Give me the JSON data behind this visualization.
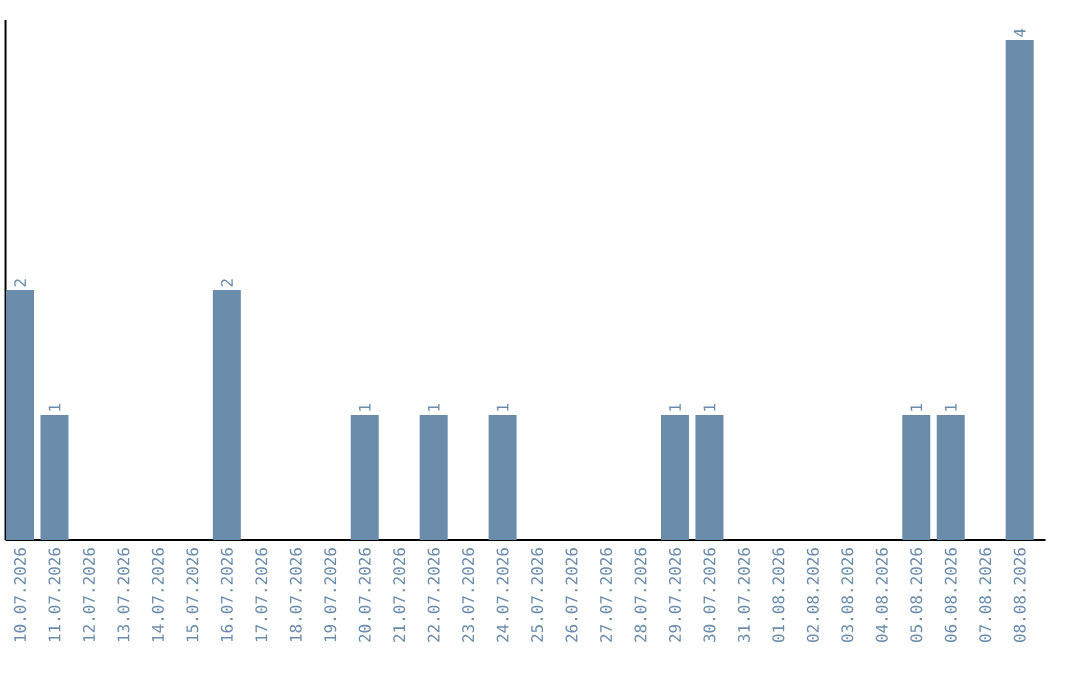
{
  "chart_data": {
    "type": "bar",
    "relative": false,
    "categories": [
      "10.07.2026",
      "11.07.2026",
      "12.07.2026",
      "13.07.2026",
      "14.07.2026",
      "15.07.2026",
      "16.07.2026",
      "17.07.2026",
      "18.07.2026",
      "19.07.2026",
      "20.07.2026",
      "21.07.2026",
      "22.07.2026",
      "23.07.2026",
      "24.07.2026",
      "25.07.2026",
      "26.07.2026",
      "27.07.2026",
      "28.07.2026",
      "29.07.2026",
      "30.07.2026",
      "31.07.2026",
      "01.08.2026",
      "02.08.2026",
      "03.08.2026",
      "04.08.2026",
      "05.08.2026",
      "06.08.2026",
      "07.08.2026",
      "08.08.2026"
    ],
    "values": [
      2,
      1,
      0,
      0,
      0,
      0,
      2,
      0,
      0,
      0,
      1,
      0,
      1,
      0,
      1,
      0,
      0,
      0,
      0,
      1,
      1,
      0,
      0,
      0,
      0,
      0,
      1,
      1,
      0,
      4
    ],
    "value_labels": [
      "2",
      "1",
      null,
      null,
      null,
      null,
      "2",
      null,
      null,
      null,
      "1",
      null,
      "1",
      null,
      "1",
      null,
      null,
      null,
      null,
      "1",
      "1",
      null,
      null,
      null,
      null,
      null,
      "1",
      "1",
      null,
      "4"
    ],
    "color": "#6a8caa",
    "grid": false,
    "tick_labels": "x"
  }
}
